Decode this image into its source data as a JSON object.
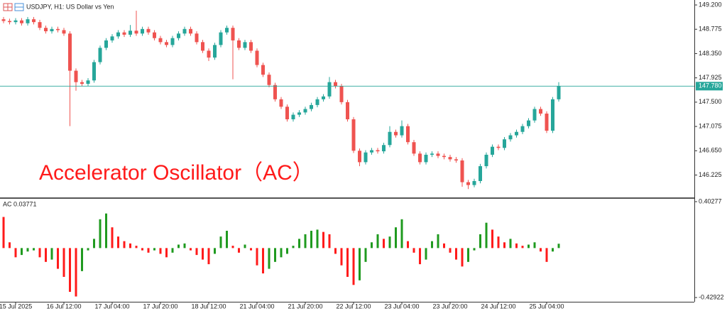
{
  "chart_data": [
    {
      "type": "candlestick",
      "title": "USDJPY, H1: US Dollar vs Yen",
      "annotation": "Accelerator Oscillator（AC）",
      "up_color": "#26a69a",
      "down_color": "#ef5350",
      "xlim": [
        -0.59,
        114.47
      ],
      "ylim": [
        145.834,
        149.287
      ],
      "yticks": [
        {
          "value": 149.2,
          "label": "149.200"
        },
        {
          "value": 148.775,
          "label": "148.775"
        },
        {
          "value": 148.35,
          "label": "148.350"
        },
        {
          "value": 147.925,
          "label": "147.925"
        },
        {
          "value": 147.5,
          "label": "147.500"
        },
        {
          "value": 147.075,
          "label": "147.075"
        },
        {
          "value": 146.65,
          "label": "146.650"
        },
        {
          "value": 146.225,
          "label": "146.225"
        }
      ],
      "current_price": {
        "value": 147.78,
        "label": "147.780"
      },
      "open": [
        148.95,
        148.92,
        148.9,
        148.93,
        148.88,
        148.95,
        148.9,
        148.8,
        148.74,
        148.78,
        148.76,
        148.7,
        148.05,
        147.85,
        147.82,
        147.88,
        148.2,
        148.45,
        148.58,
        148.65,
        148.72,
        148.68,
        148.75,
        148.7,
        148.78,
        148.72,
        148.62,
        148.55,
        148.5,
        148.62,
        148.7,
        148.78,
        148.7,
        148.55,
        148.4,
        148.28,
        148.5,
        148.72,
        148.8,
        148.58,
        148.45,
        148.55,
        148.4,
        148.15,
        147.98,
        147.8,
        147.55,
        147.42,
        147.2,
        147.28,
        147.32,
        147.38,
        147.45,
        147.55,
        147.6,
        147.85,
        147.78,
        147.5,
        147.2,
        146.65,
        146.45,
        146.62,
        146.66,
        146.64,
        146.75,
        146.98,
        146.92,
        147.08,
        146.8,
        146.6,
        146.45,
        146.58,
        146.6,
        146.56,
        146.54,
        146.5,
        146.48,
        146.1,
        146.05,
        146.12,
        146.38,
        146.58,
        146.72,
        146.7,
        146.85,
        146.92,
        146.98,
        147.08,
        147.18,
        147.38,
        147.3,
        147.0,
        147.55
      ],
      "high": [
        148.99,
        148.96,
        148.97,
        148.97,
        148.99,
        148.99,
        148.94,
        148.84,
        148.82,
        148.82,
        148.8,
        148.74,
        148.09,
        147.89,
        147.92,
        148.24,
        148.49,
        148.62,
        148.69,
        148.76,
        148.76,
        148.85,
        149.1,
        148.82,
        148.82,
        148.76,
        148.66,
        148.59,
        148.66,
        148.74,
        148.82,
        148.82,
        148.74,
        148.59,
        148.44,
        148.54,
        148.76,
        148.84,
        148.84,
        148.62,
        148.59,
        148.59,
        148.44,
        148.19,
        148.02,
        147.84,
        147.59,
        147.46,
        147.32,
        147.36,
        147.42,
        147.49,
        147.59,
        147.64,
        147.94,
        147.89,
        147.82,
        147.54,
        147.24,
        146.69,
        146.66,
        146.7,
        146.7,
        146.79,
        147.08,
        147.02,
        147.18,
        147.12,
        146.84,
        146.64,
        146.62,
        146.64,
        146.64,
        146.6,
        146.58,
        146.54,
        146.52,
        146.14,
        146.16,
        146.42,
        146.62,
        146.76,
        146.76,
        146.89,
        146.96,
        147.02,
        147.12,
        147.22,
        147.42,
        147.42,
        147.34,
        147.59,
        147.85
      ],
      "low": [
        148.88,
        148.86,
        148.86,
        148.84,
        148.84,
        148.86,
        148.76,
        148.7,
        148.7,
        148.72,
        148.66,
        147.08,
        147.7,
        147.78,
        147.78,
        147.84,
        148.16,
        148.41,
        148.54,
        148.61,
        148.64,
        148.64,
        148.66,
        148.66,
        148.68,
        148.58,
        148.51,
        148.46,
        148.46,
        148.58,
        148.66,
        148.66,
        148.51,
        148.36,
        148.22,
        148.24,
        148.46,
        148.68,
        147.9,
        148.41,
        148.41,
        148.36,
        148.11,
        147.94,
        147.76,
        147.51,
        147.38,
        147.16,
        147.16,
        147.24,
        147.28,
        147.34,
        147.41,
        147.51,
        147.56,
        147.74,
        147.46,
        147.16,
        146.61,
        146.38,
        146.41,
        146.58,
        146.6,
        146.6,
        146.71,
        146.88,
        146.88,
        146.76,
        146.56,
        146.41,
        146.41,
        146.54,
        146.52,
        146.5,
        146.46,
        146.44,
        146.02,
        145.98,
        146.01,
        146.08,
        146.34,
        146.54,
        146.66,
        146.66,
        146.81,
        146.88,
        146.94,
        147.04,
        147.14,
        147.26,
        146.96,
        146.96,
        147.51
      ],
      "close": [
        148.92,
        148.9,
        148.93,
        148.88,
        148.95,
        148.9,
        148.8,
        148.74,
        148.78,
        148.76,
        148.7,
        148.05,
        147.85,
        147.82,
        147.88,
        148.2,
        148.45,
        148.58,
        148.65,
        148.72,
        148.68,
        148.75,
        148.7,
        148.78,
        148.72,
        148.62,
        148.55,
        148.5,
        148.62,
        148.7,
        148.78,
        148.7,
        148.55,
        148.4,
        148.28,
        148.5,
        148.72,
        148.8,
        148.58,
        148.45,
        148.55,
        148.4,
        148.15,
        147.98,
        147.8,
        147.55,
        147.42,
        147.2,
        147.28,
        147.32,
        147.38,
        147.45,
        147.55,
        147.6,
        147.85,
        147.78,
        147.5,
        147.2,
        146.65,
        146.45,
        146.62,
        146.66,
        146.64,
        146.75,
        146.98,
        146.92,
        147.08,
        146.8,
        146.6,
        146.45,
        146.58,
        146.6,
        146.56,
        146.54,
        146.5,
        146.48,
        146.1,
        146.05,
        146.12,
        146.38,
        146.58,
        146.72,
        146.7,
        146.85,
        146.92,
        146.98,
        147.08,
        147.18,
        147.38,
        147.3,
        147.0,
        147.55,
        147.78
      ]
    },
    {
      "type": "histogram-oscillator",
      "title": "AC 0.03771",
      "up_color": "#1f9a1f",
      "down_color": "#ff1a1a",
      "xlim": [
        -0.59,
        114.47
      ],
      "ylim": [
        -0.466,
        0.4274
      ],
      "yticks": [
        0.40277,
        -0.42922
      ],
      "xticks": [
        {
          "value": 2,
          "label": "15 Jul 2025"
        },
        {
          "value": 10,
          "label": "16 Jul 12:00"
        },
        {
          "value": 18,
          "label": "17 Jul 04:00"
        },
        {
          "value": 26,
          "label": "17 Jul 20:00"
        },
        {
          "value": 34,
          "label": "18 Jul 12:00"
        },
        {
          "value": 42,
          "label": "21 Jul 04:00"
        },
        {
          "value": 50,
          "label": "21 Jul 20:00"
        },
        {
          "value": 58,
          "label": "22 Jul 12:00"
        },
        {
          "value": 66,
          "label": "23 Jul 04:00"
        },
        {
          "value": 74,
          "label": "23 Jul 20:00"
        },
        {
          "value": 82,
          "label": "24 Jul 12:00"
        },
        {
          "value": 90,
          "label": "25 Jul 04:00"
        }
      ],
      "values": [
        0.27,
        0.05,
        -0.08,
        -0.06,
        -0.03,
        -0.02,
        -0.08,
        -0.12,
        -0.1,
        -0.18,
        -0.25,
        -0.38,
        -0.42,
        -0.2,
        -0.02,
        0.08,
        0.25,
        0.3,
        0.18,
        0.1,
        0.06,
        0.04,
        0.02,
        -0.02,
        -0.04,
        -0.02,
        -0.05,
        -0.08,
        -0.04,
        0.03,
        0.04,
        -0.02,
        -0.06,
        -0.1,
        -0.14,
        -0.05,
        0.1,
        0.15,
        0.02,
        -0.04,
        0.03,
        -0.02,
        -0.15,
        -0.22,
        -0.18,
        -0.12,
        -0.08,
        -0.05,
        0.02,
        0.08,
        0.12,
        0.15,
        0.16,
        0.14,
        0.12,
        -0.05,
        -0.15,
        -0.25,
        -0.32,
        -0.28,
        -0.12,
        0.05,
        0.12,
        0.08,
        0.1,
        0.18,
        0.25,
        0.06,
        -0.04,
        -0.14,
        -0.1,
        0.06,
        0.12,
        0.04,
        -0.04,
        -0.1,
        -0.16,
        -0.12,
        -0.02,
        0.12,
        0.22,
        0.16,
        0.1,
        0.05,
        0.08,
        0.04,
        0.02,
        0.03,
        0.05,
        -0.03,
        -0.12,
        -0.03,
        0.03771
      ]
    }
  ]
}
